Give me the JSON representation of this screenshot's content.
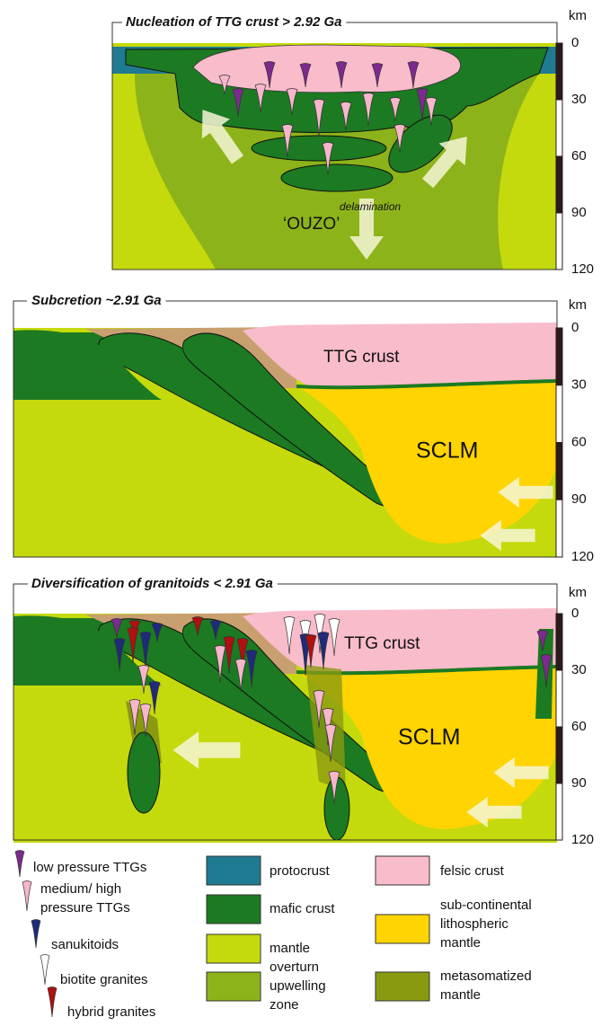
{
  "panels": [
    {
      "title": "Nucleation of TTG crust > 2.92 Ga",
      "unit": "km",
      "depths": [
        "0",
        "30",
        "60",
        "90",
        "120"
      ],
      "labels": [
        "‘OUZO’",
        "delamination"
      ]
    },
    {
      "title": "Subcretion ~2.91 Ga",
      "unit": "km",
      "depths": [
        "0",
        "30",
        "60",
        "90",
        "120"
      ],
      "labels": [
        "TTG crust",
        "SCLM"
      ]
    },
    {
      "title": "Diversification of granitoids < 2.91 Ga",
      "unit": "km",
      "depths": [
        "0",
        "30",
        "60",
        "90",
        "120"
      ],
      "labels": [
        "TTG crust",
        "SCLM"
      ]
    }
  ],
  "legend": {
    "granitoids": [
      [
        "low pressure TTGs"
      ],
      [
        "medium/ high",
        "pressure TTGs"
      ],
      [
        "sanukitoids"
      ],
      [
        "biotite granites"
      ],
      [
        "hybrid granites"
      ]
    ],
    "units": [
      [
        "protocrust"
      ],
      [
        "mafic crust"
      ],
      [
        "mantle"
      ],
      [
        "overturn",
        "upwelling",
        "zone"
      ],
      [
        "felsic crust"
      ],
      [
        "sub-continental",
        "lithospheric",
        "mantle"
      ],
      [
        "metasomatized",
        "mantle"
      ]
    ]
  }
}
